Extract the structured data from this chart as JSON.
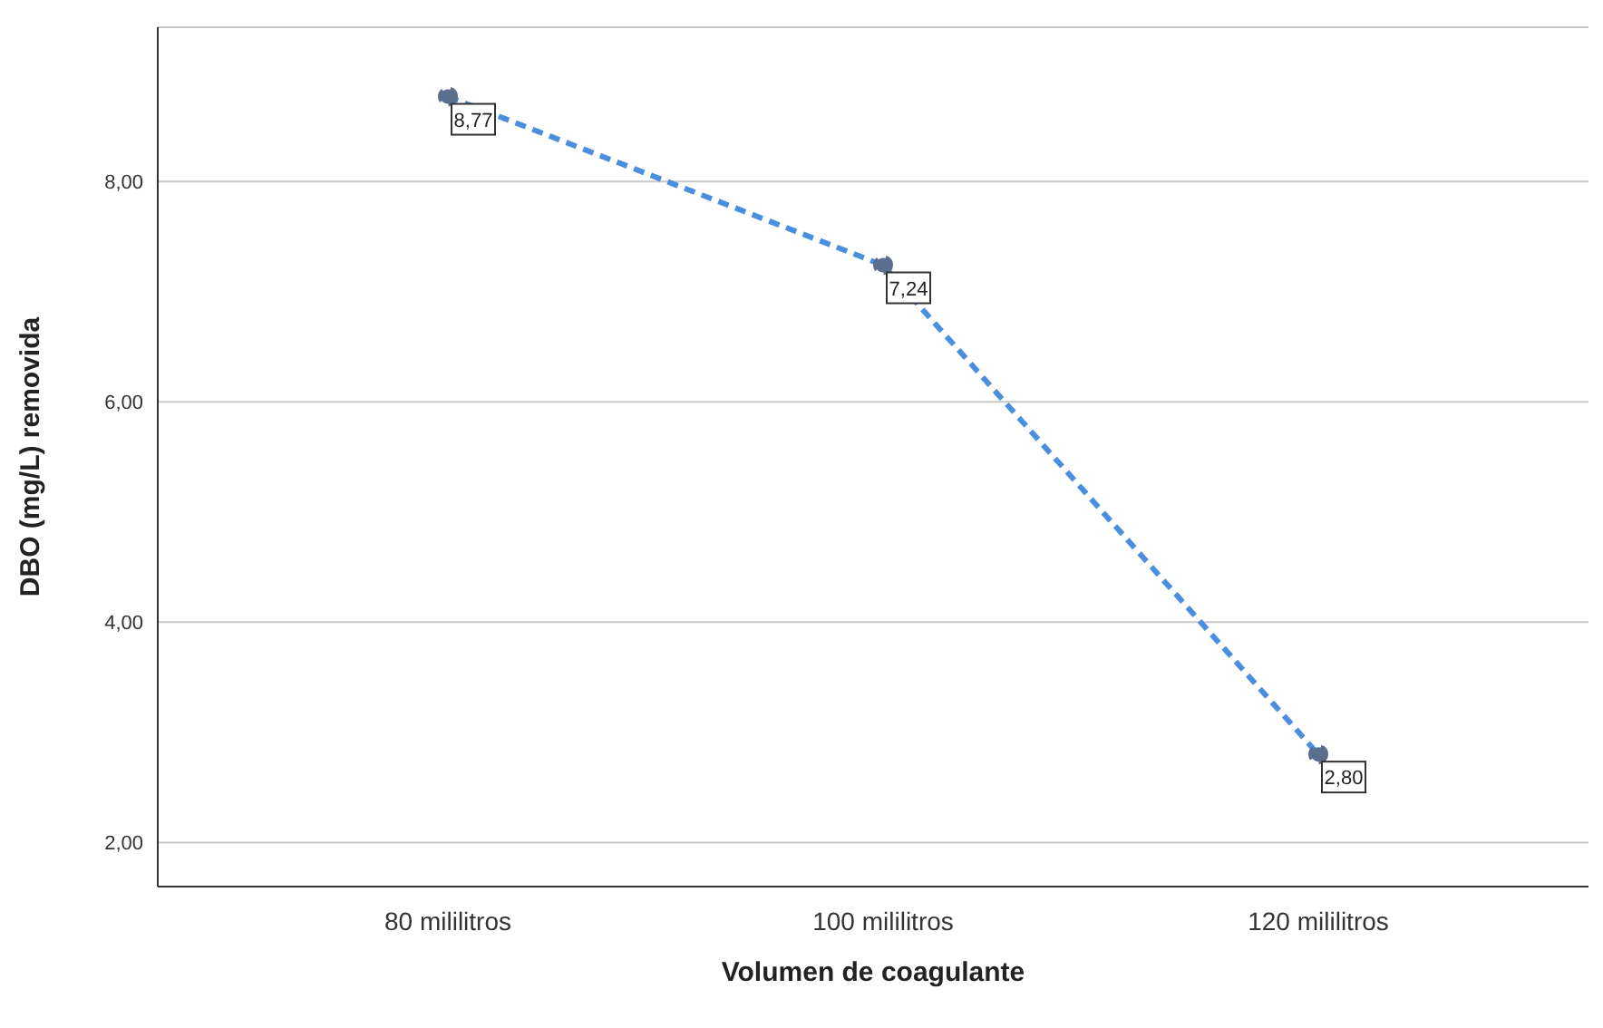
{
  "chart_data": {
    "type": "line",
    "xlabel": "Volumen de coagulante",
    "ylabel": "DBO (mg/L) removida",
    "categories": [
      "80 mililitros",
      "100 mililitros",
      "120 mililitros"
    ],
    "series": [
      {
        "color": "#4a8ee0",
        "values": [
          8.77,
          7.24,
          2.8
        ],
        "value_labels": [
          "8,77",
          "7,24",
          "2,80"
        ]
      }
    ],
    "ylim": [
      1.6,
      9.4
    ],
    "yticks": [
      {
        "value": 2,
        "label": "2,00"
      },
      {
        "value": 4,
        "label": "4,00"
      },
      {
        "value": 6,
        "label": "6,00"
      },
      {
        "value": 8,
        "label": "8,00"
      }
    ],
    "grid": "y",
    "marker": "circle",
    "line_style": "dashed"
  }
}
